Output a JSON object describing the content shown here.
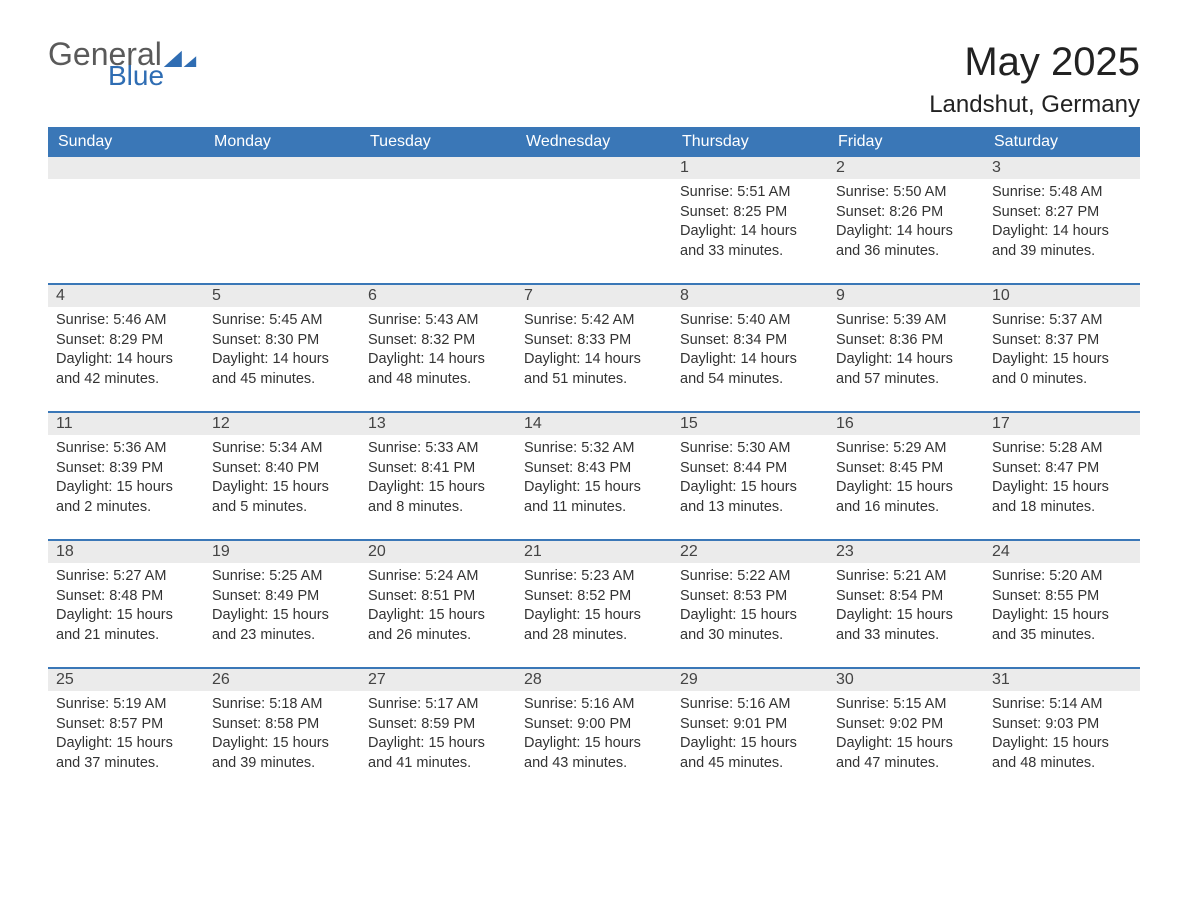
{
  "logo": {
    "general": "General",
    "blue": "Blue"
  },
  "header": {
    "month_title": "May 2025",
    "location": "Landshut, Germany"
  },
  "colors": {
    "header_bg": "#3a77b7",
    "daynum_bg": "#ebebeb",
    "logo_blue": "#2f6db3",
    "logo_gray": "#5a5a5a",
    "text": "#333333",
    "page_bg": "#ffffff"
  },
  "weekdays": [
    "Sunday",
    "Monday",
    "Tuesday",
    "Wednesday",
    "Thursday",
    "Friday",
    "Saturday"
  ],
  "labels": {
    "sunrise": "Sunrise:",
    "sunset": "Sunset:",
    "daylight": "Daylight:"
  },
  "weeks": [
    [
      {
        "blank": true
      },
      {
        "blank": true
      },
      {
        "blank": true
      },
      {
        "blank": true
      },
      {
        "day": "1",
        "sunrise": "5:51 AM",
        "sunset": "8:25 PM",
        "daylight_l1": "14 hours",
        "daylight_l2": "and 33 minutes."
      },
      {
        "day": "2",
        "sunrise": "5:50 AM",
        "sunset": "8:26 PM",
        "daylight_l1": "14 hours",
        "daylight_l2": "and 36 minutes."
      },
      {
        "day": "3",
        "sunrise": "5:48 AM",
        "sunset": "8:27 PM",
        "daylight_l1": "14 hours",
        "daylight_l2": "and 39 minutes."
      }
    ],
    [
      {
        "day": "4",
        "sunrise": "5:46 AM",
        "sunset": "8:29 PM",
        "daylight_l1": "14 hours",
        "daylight_l2": "and 42 minutes."
      },
      {
        "day": "5",
        "sunrise": "5:45 AM",
        "sunset": "8:30 PM",
        "daylight_l1": "14 hours",
        "daylight_l2": "and 45 minutes."
      },
      {
        "day": "6",
        "sunrise": "5:43 AM",
        "sunset": "8:32 PM",
        "daylight_l1": "14 hours",
        "daylight_l2": "and 48 minutes."
      },
      {
        "day": "7",
        "sunrise": "5:42 AM",
        "sunset": "8:33 PM",
        "daylight_l1": "14 hours",
        "daylight_l2": "and 51 minutes."
      },
      {
        "day": "8",
        "sunrise": "5:40 AM",
        "sunset": "8:34 PM",
        "daylight_l1": "14 hours",
        "daylight_l2": "and 54 minutes."
      },
      {
        "day": "9",
        "sunrise": "5:39 AM",
        "sunset": "8:36 PM",
        "daylight_l1": "14 hours",
        "daylight_l2": "and 57 minutes."
      },
      {
        "day": "10",
        "sunrise": "5:37 AM",
        "sunset": "8:37 PM",
        "daylight_l1": "15 hours",
        "daylight_l2": "and 0 minutes."
      }
    ],
    [
      {
        "day": "11",
        "sunrise": "5:36 AM",
        "sunset": "8:39 PM",
        "daylight_l1": "15 hours",
        "daylight_l2": "and 2 minutes."
      },
      {
        "day": "12",
        "sunrise": "5:34 AM",
        "sunset": "8:40 PM",
        "daylight_l1": "15 hours",
        "daylight_l2": "and 5 minutes."
      },
      {
        "day": "13",
        "sunrise": "5:33 AM",
        "sunset": "8:41 PM",
        "daylight_l1": "15 hours",
        "daylight_l2": "and 8 minutes."
      },
      {
        "day": "14",
        "sunrise": "5:32 AM",
        "sunset": "8:43 PM",
        "daylight_l1": "15 hours",
        "daylight_l2": "and 11 minutes."
      },
      {
        "day": "15",
        "sunrise": "5:30 AM",
        "sunset": "8:44 PM",
        "daylight_l1": "15 hours",
        "daylight_l2": "and 13 minutes."
      },
      {
        "day": "16",
        "sunrise": "5:29 AM",
        "sunset": "8:45 PM",
        "daylight_l1": "15 hours",
        "daylight_l2": "and 16 minutes."
      },
      {
        "day": "17",
        "sunrise": "5:28 AM",
        "sunset": "8:47 PM",
        "daylight_l1": "15 hours",
        "daylight_l2": "and 18 minutes."
      }
    ],
    [
      {
        "day": "18",
        "sunrise": "5:27 AM",
        "sunset": "8:48 PM",
        "daylight_l1": "15 hours",
        "daylight_l2": "and 21 minutes."
      },
      {
        "day": "19",
        "sunrise": "5:25 AM",
        "sunset": "8:49 PM",
        "daylight_l1": "15 hours",
        "daylight_l2": "and 23 minutes."
      },
      {
        "day": "20",
        "sunrise": "5:24 AM",
        "sunset": "8:51 PM",
        "daylight_l1": "15 hours",
        "daylight_l2": "and 26 minutes."
      },
      {
        "day": "21",
        "sunrise": "5:23 AM",
        "sunset": "8:52 PM",
        "daylight_l1": "15 hours",
        "daylight_l2": "and 28 minutes."
      },
      {
        "day": "22",
        "sunrise": "5:22 AM",
        "sunset": "8:53 PM",
        "daylight_l1": "15 hours",
        "daylight_l2": "and 30 minutes."
      },
      {
        "day": "23",
        "sunrise": "5:21 AM",
        "sunset": "8:54 PM",
        "daylight_l1": "15 hours",
        "daylight_l2": "and 33 minutes."
      },
      {
        "day": "24",
        "sunrise": "5:20 AM",
        "sunset": "8:55 PM",
        "daylight_l1": "15 hours",
        "daylight_l2": "and 35 minutes."
      }
    ],
    [
      {
        "day": "25",
        "sunrise": "5:19 AM",
        "sunset": "8:57 PM",
        "daylight_l1": "15 hours",
        "daylight_l2": "and 37 minutes."
      },
      {
        "day": "26",
        "sunrise": "5:18 AM",
        "sunset": "8:58 PM",
        "daylight_l1": "15 hours",
        "daylight_l2": "and 39 minutes."
      },
      {
        "day": "27",
        "sunrise": "5:17 AM",
        "sunset": "8:59 PM",
        "daylight_l1": "15 hours",
        "daylight_l2": "and 41 minutes."
      },
      {
        "day": "28",
        "sunrise": "5:16 AM",
        "sunset": "9:00 PM",
        "daylight_l1": "15 hours",
        "daylight_l2": "and 43 minutes."
      },
      {
        "day": "29",
        "sunrise": "5:16 AM",
        "sunset": "9:01 PM",
        "daylight_l1": "15 hours",
        "daylight_l2": "and 45 minutes."
      },
      {
        "day": "30",
        "sunrise": "5:15 AM",
        "sunset": "9:02 PM",
        "daylight_l1": "15 hours",
        "daylight_l2": "and 47 minutes."
      },
      {
        "day": "31",
        "sunrise": "5:14 AM",
        "sunset": "9:03 PM",
        "daylight_l1": "15 hours",
        "daylight_l2": "and 48 minutes."
      }
    ]
  ]
}
